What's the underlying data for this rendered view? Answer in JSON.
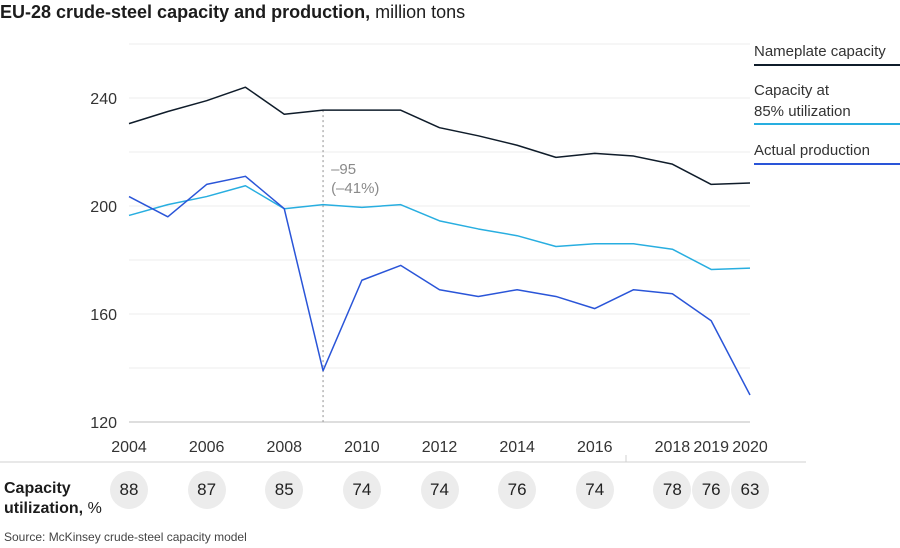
{
  "title": {
    "bold": "EU-28 crude-steel capacity and production,",
    "unit": "million tons"
  },
  "chart_data": {
    "type": "line",
    "x": [
      2004,
      2005,
      2006,
      2007,
      2008,
      2009,
      2010,
      2011,
      2012,
      2013,
      2014,
      2015,
      2016,
      2017,
      2018,
      2019,
      2020
    ],
    "x_tick_labels": [
      "2004",
      "2006",
      "2008",
      "2010",
      "2012",
      "2014",
      "2016",
      "2018",
      "2019",
      "2020"
    ],
    "x_tick_values": [
      2004,
      2006,
      2008,
      2010,
      2012,
      2014,
      2016,
      2018,
      2019,
      2020
    ],
    "ylim": [
      120,
      260
    ],
    "y_tick_values": [
      120,
      160,
      200,
      240
    ],
    "y_tick_labels": [
      "120",
      "160",
      "200",
      "240"
    ],
    "grid": true,
    "legend_position": "right",
    "series": [
      {
        "name": "Nameplate capacity",
        "color": "#0f1c2a",
        "values": [
          230.5,
          235,
          239,
          244,
          234,
          235.5,
          235.5,
          235.5,
          229,
          226,
          222.5,
          218,
          219.5,
          218.5,
          215.5,
          208,
          208.5
        ]
      },
      {
        "name": "Capacity at 85% utilization",
        "color": "#28aee0",
        "values": [
          196.5,
          200.5,
          203.5,
          207.5,
          199,
          200.5,
          199.5,
          200.5,
          194.5,
          191.5,
          189,
          185,
          186,
          186,
          184,
          176.5,
          177
        ]
      },
      {
        "name": "Actual production",
        "color": "#2a55d8",
        "values": [
          203.5,
          196,
          208,
          211,
          199,
          139,
          172.5,
          178,
          169,
          166.5,
          169,
          166.5,
          162,
          169,
          167.5,
          157.5,
          130
        ]
      }
    ],
    "annotation": {
      "x": 2009,
      "line1": "–95",
      "line2": "(–41%)"
    },
    "legend_labels": [
      "Nameplate capacity",
      "Capacity at\n85% utilization",
      "Actual production"
    ]
  },
  "utilization": {
    "label_bold": "Capacity",
    "label_bold2": "utilization,",
    "label_unit": "%",
    "items": [
      {
        "year": 2004,
        "value": "88"
      },
      {
        "year": 2006,
        "value": "87"
      },
      {
        "year": 2008,
        "value": "85"
      },
      {
        "year": 2010,
        "value": "74"
      },
      {
        "year": 2012,
        "value": "74"
      },
      {
        "year": 2014,
        "value": "76"
      },
      {
        "year": 2016,
        "value": "74"
      },
      {
        "year": 2018,
        "value": "78"
      },
      {
        "year": 2019,
        "value": "76"
      },
      {
        "year": 2020,
        "value": "63"
      }
    ]
  },
  "source": "Source: McKinsey crude-steel capacity model"
}
